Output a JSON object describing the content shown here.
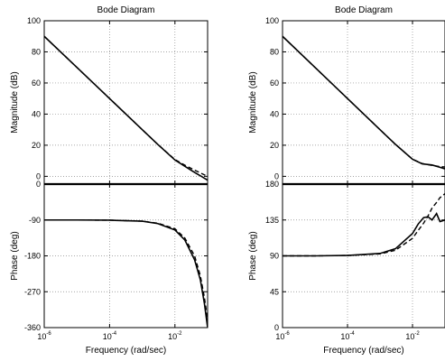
{
  "chart_data": [
    {
      "type": "line",
      "title": "Bode Diagram",
      "xlabel": "Frequency  (rad/sec)",
      "x_scale": "log",
      "xlim": [
        1e-06,
        0.1
      ],
      "x_ticks": [
        {
          "base": "10",
          "exp": "-6",
          "value": 1e-06
        },
        {
          "base": "10",
          "exp": "-4",
          "value": 0.0001
        },
        {
          "base": "10",
          "exp": "-2",
          "value": 0.01
        }
      ],
      "grid": true,
      "magnitude": {
        "ylabel": "Magnitude (dB)",
        "ylim": [
          -5,
          100
        ],
        "y_ticks": [
          "0",
          "20",
          "40",
          "60",
          "80",
          "100"
        ],
        "series": [
          {
            "style": "solid",
            "x": [
              1e-06,
              1e-05,
              0.0001,
              0.001,
              0.003,
              0.01,
              0.02,
              0.04,
              0.07,
              0.1
            ],
            "y": [
              90,
              70,
              50,
              30,
              20.5,
              10.5,
              6.5,
              2.5,
              -0.5,
              -2.5
            ]
          },
          {
            "style": "dashed",
            "x": [
              1e-06,
              1e-05,
              0.0001,
              0.001,
              0.003,
              0.01,
              0.02,
              0.04,
              0.07,
              0.1
            ],
            "y": [
              90,
              70,
              50,
              30,
              20.5,
              10.8,
              7.2,
              4,
              1.5,
              0
            ]
          }
        ]
      },
      "phase": {
        "ylabel": "Phase (deg)",
        "ylim": [
          -360,
          0
        ],
        "y_ticks": [
          "0",
          "-90",
          "-180",
          "-270",
          "-360"
        ],
        "series": [
          {
            "style": "solid",
            "x": [
              1e-06,
              1e-05,
              0.0001,
              0.001,
              0.003,
              0.01,
              0.02,
              0.04,
              0.06,
              0.08,
              0.1
            ],
            "y": [
              -90,
              -90,
              -90.5,
              -93,
              -99,
              -115,
              -140,
              -190,
              -240,
              -300,
              -360
            ]
          },
          {
            "style": "dashed",
            "x": [
              1e-06,
              1e-05,
              0.0001,
              0.001,
              0.003,
              0.01,
              0.02,
              0.04,
              0.06,
              0.08,
              0.1
            ],
            "y": [
              -90,
              -90,
              -90.5,
              -93,
              -98,
              -112,
              -135,
              -180,
              -230,
              -285,
              -340
            ]
          }
        ]
      }
    },
    {
      "type": "line",
      "title": "Bode Diagram",
      "xlabel": "Frequency  (rad/sec)",
      "x_scale": "log",
      "xlim": [
        1e-06,
        0.1
      ],
      "x_ticks": [
        {
          "base": "10",
          "exp": "-6",
          "value": 1e-06
        },
        {
          "base": "10",
          "exp": "-4",
          "value": 0.0001
        },
        {
          "base": "10",
          "exp": "-2",
          "value": 0.01
        }
      ],
      "grid": true,
      "magnitude": {
        "ylabel": "Magnitude (dB)",
        "ylim": [
          -5,
          100
        ],
        "y_ticks": [
          "0",
          "20",
          "40",
          "60",
          "80",
          "100"
        ],
        "series": [
          {
            "style": "solid",
            "x": [
              1e-06,
              1e-05,
              0.0001,
              0.001,
              0.003,
              0.01,
              0.02,
              0.04,
              0.07,
              0.1
            ],
            "y": [
              90,
              70,
              50,
              30,
              20.5,
              11,
              8,
              7.3,
              5.8,
              4.8
            ]
          },
          {
            "style": "dashed",
            "x": [
              1e-06,
              1e-05,
              0.0001,
              0.001,
              0.003,
              0.01,
              0.02,
              0.04,
              0.07,
              0.1
            ],
            "y": [
              90,
              70,
              50,
              30,
              20.5,
              11,
              8.2,
              7,
              6.3,
              6
            ]
          }
        ]
      },
      "phase": {
        "ylabel": "Phase (deg)",
        "ylim": [
          0,
          180
        ],
        "y_ticks": [
          "0",
          "45",
          "90",
          "135",
          "180"
        ],
        "series": [
          {
            "style": "solid",
            "x": [
              1e-06,
              1e-05,
              0.0001,
              0.001,
              0.003,
              0.01,
              0.015,
              0.022,
              0.03,
              0.04,
              0.055,
              0.07,
              0.1
            ],
            "y": [
              90,
              90,
              90.5,
              93,
              99,
              118,
              130,
              138,
              139,
              135,
              143,
              133,
              135
            ]
          },
          {
            "style": "dashed",
            "x": [
              1e-06,
              1e-05,
              0.0001,
              0.001,
              0.003,
              0.01,
              0.015,
              0.022,
              0.03,
              0.04,
              0.055,
              0.07,
              0.1
            ],
            "y": [
              90,
              90,
              90.5,
              92.5,
              97,
              112,
              122,
              131,
              140,
              150,
              157,
              163,
              168
            ]
          }
        ]
      }
    }
  ]
}
